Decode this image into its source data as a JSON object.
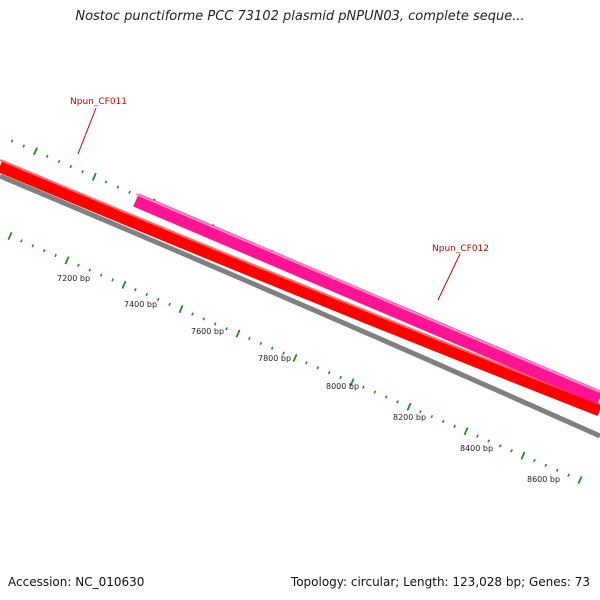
{
  "title": "Nostoc punctiforme PCC 73102 plasmid pNPUN03, complete seque...",
  "footer": {
    "accession": "Accession: NC_010630",
    "summary": "Topology: circular; Length: 123,028 bp; Genes: 73"
  },
  "colors": {
    "forward_gene": "#ff1493",
    "reverse_gene": "#ff0000",
    "backbone": "#808080",
    "ticks": "#1e8c1e",
    "gene_label": "#cc0000"
  },
  "genes": [
    {
      "name": "Npun_CF011",
      "strand": "reverse",
      "color": "#ff0000"
    },
    {
      "name": "Npun_CF012",
      "strand": "forward",
      "color": "#ff1493"
    }
  ],
  "scale_labels": [
    "7200 bp",
    "7400 bp",
    "7600 bp",
    "7800 bp",
    "8000 bp",
    "8200 bp",
    "8400 bp",
    "8600 bp"
  ]
}
